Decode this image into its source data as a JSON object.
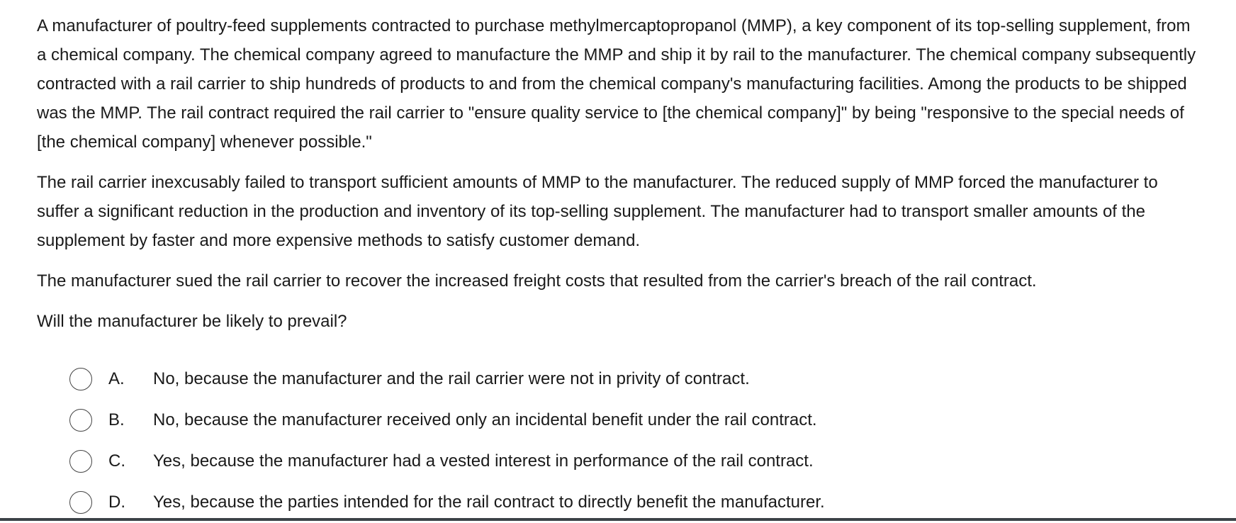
{
  "question": {
    "stem": [
      "A manufacturer of poultry-feed supplements contracted to purchase methylmercaptopropanol (MMP), a key component of its top-selling supplement, from a chemical company.  The chemical company agreed to manufacture the MMP and ship it by rail to the manufacturer.  The chemical company subsequently contracted with a rail carrier to ship hundreds of products to and from the chemical company's manufacturing facilities.  Among the products to be shipped was the MMP.  The rail contract required the rail carrier to \"ensure quality service to [the chemical company]\" by being \"responsive to the special needs of [the chemical company] whenever possible.\"",
      "The rail carrier inexcusably failed to transport sufficient amounts of MMP to the manufacturer.  The reduced supply of MMP forced the manufacturer to suffer a significant reduction in the production and inventory of its top-selling supplement.  The manufacturer had to transport smaller amounts of the supplement by faster and more expensive methods to satisfy customer demand.",
      "The manufacturer sued the rail carrier to recover the increased freight costs that resulted from the carrier's breach of the rail contract."
    ],
    "prompt": "Will the manufacturer be likely to prevail?",
    "options": [
      {
        "letter": "A.",
        "text": "No, because the manufacturer and the rail carrier were not in privity of contract."
      },
      {
        "letter": "B.",
        "text": "No, because the manufacturer received only an incidental benefit under the rail contract."
      },
      {
        "letter": "C.",
        "text": "Yes, because the manufacturer had a vested interest in performance of the rail contract."
      },
      {
        "letter": "D.",
        "text": "Yes, because the parties intended for the rail contract to directly benefit the manufacturer."
      }
    ],
    "selected": null
  },
  "colors": {
    "text": "#1a1a1a",
    "radio_border": "#444444",
    "bottom_rule": "#3c4247"
  }
}
